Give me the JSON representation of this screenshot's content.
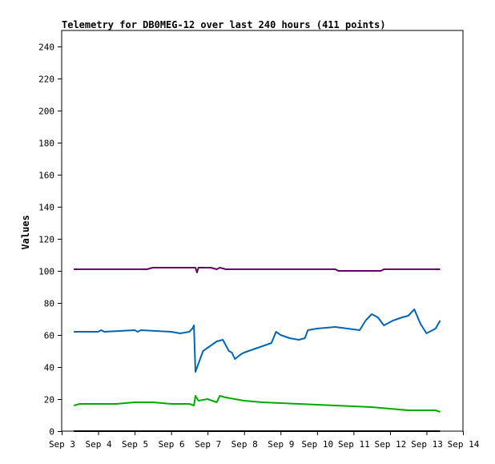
{
  "chart_data": {
    "type": "line",
    "title": "Telemetry for DB0MEG-12 over last 240 hours (411 points)",
    "xlabel": "",
    "ylabel": "Values",
    "ylim": [
      0,
      250
    ],
    "yticks": [
      0,
      20,
      40,
      60,
      80,
      100,
      120,
      140,
      160,
      180,
      200,
      220,
      240
    ],
    "xlim": [
      "Sep 3",
      "Sep 14"
    ],
    "xticks": [
      "Sep 3",
      "Sep 4",
      "Sep 5",
      "Sep 6",
      "Sep 7",
      "Sep 8",
      "Sep 9",
      "Sep 10",
      "Sep 11",
      "Sep 12",
      "Sep 13",
      "Sep 14"
    ],
    "grid": false,
    "legend": "none",
    "series": [
      {
        "color": "#660066",
        "x": [
          "Sep 3 08:00",
          "Sep 5 08:00",
          "Sep 5 12:00",
          "Sep 6 12:00",
          "Sep 6 16:00",
          "Sep 6 17:00",
          "Sep 6 18:00",
          "Sep 7 00:00",
          "Sep 7 02:00",
          "Sep 7 06:00",
          "Sep 7 08:00",
          "Sep 7 12:00",
          "Sep 8 12:00",
          "Sep 10 12:00",
          "Sep 10 14:00",
          "Sep 11 18:00",
          "Sep 11 20:00",
          "Sep 13 09:00"
        ],
        "y": [
          101,
          101,
          102,
          102,
          102,
          99,
          102,
          102,
          102,
          101,
          102,
          101,
          101,
          101,
          100,
          100,
          101,
          101
        ]
      },
      {
        "color": "#0066b3",
        "x": [
          "Sep 3 08:00",
          "Sep 4 00:00",
          "Sep 4 02:00",
          "Sep 4 04:00",
          "Sep 5 00:00",
          "Sep 5 02:00",
          "Sep 5 04:00",
          "Sep 6 00:00",
          "Sep 6 06:00",
          "Sep 6 12:00",
          "Sep 6 14:00",
          "Sep 6 15:00",
          "Sep 6 16:00",
          "Sep 6 21:00",
          "Sep 7 06:00",
          "Sep 7 10:00",
          "Sep 7 14:00",
          "Sep 7 16:00",
          "Sep 7 18:00",
          "Sep 7 22:00",
          "Sep 8 00:00",
          "Sep 8 12:00",
          "Sep 8 18:00",
          "Sep 8 21:00",
          "Sep 9 00:00",
          "Sep 9 06:00",
          "Sep 9 12:00",
          "Sep 9 16:00",
          "Sep 9 18:00",
          "Sep 10 00:00",
          "Sep 10 12:00",
          "Sep 10 20:00",
          "Sep 11 04:00",
          "Sep 11 08:00",
          "Sep 11 12:00",
          "Sep 11 16:00",
          "Sep 11 20:00",
          "Sep 12 02:00",
          "Sep 12 08:00",
          "Sep 12 12:00",
          "Sep 12 16:00",
          "Sep 12 20:00",
          "Sep 13 00:00",
          "Sep 13 06:00",
          "Sep 13 09:00"
        ],
        "y": [
          62,
          62,
          63,
          62,
          63,
          62,
          63,
          62,
          61,
          62,
          64,
          66,
          37,
          50,
          56,
          57,
          50,
          49,
          45,
          48,
          49,
          53,
          55,
          62,
          60,
          58,
          57,
          58,
          63,
          64,
          65,
          64,
          63,
          69,
          73,
          71,
          66,
          69,
          71,
          72,
          76,
          67,
          61,
          64,
          69
        ]
      },
      {
        "color": "#00aa00",
        "x": [
          "Sep 3 08:00",
          "Sep 3 12:00",
          "Sep 4 12:00",
          "Sep 5 00:00",
          "Sep 5 12:00",
          "Sep 6 00:00",
          "Sep 6 12:00",
          "Sep 6 15:00",
          "Sep 6 16:00",
          "Sep 6 18:00",
          "Sep 7 00:00",
          "Sep 7 06:00",
          "Sep 7 08:00",
          "Sep 7 12:00",
          "Sep 8 00:00",
          "Sep 8 12:00",
          "Sep 9 12:00",
          "Sep 10 12:00",
          "Sep 11 12:00",
          "Sep 12 00:00",
          "Sep 12 12:00",
          "Sep 13 00:00",
          "Sep 13 06:00",
          "Sep 13 09:00"
        ],
        "y": [
          16,
          17,
          17,
          18,
          18,
          17,
          17,
          16,
          22,
          19,
          20,
          18,
          22,
          21,
          19,
          18,
          17,
          16,
          15,
          14,
          13,
          13,
          13,
          12
        ]
      },
      {
        "color": "#000000",
        "x": [
          "Sep 3 08:00",
          "Sep 13 09:00"
        ],
        "y": [
          0,
          0
        ]
      }
    ]
  }
}
